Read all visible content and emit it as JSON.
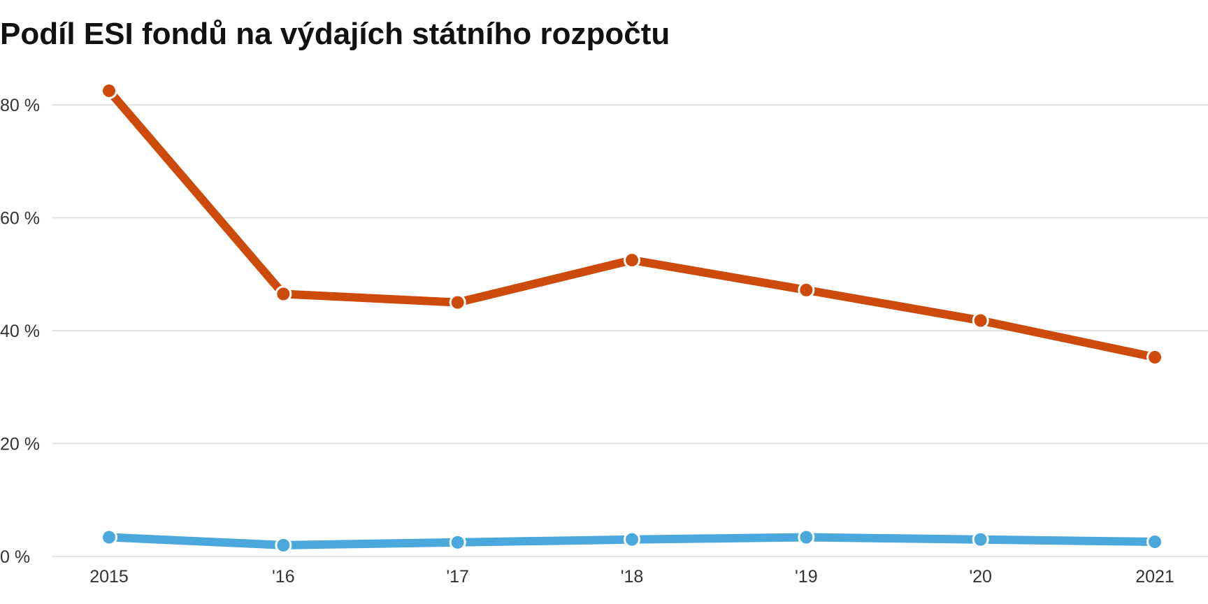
{
  "chart_data": {
    "type": "line",
    "title": "Podíl ESI fondů na výdajích státního rozpočtu",
    "xlabel": "",
    "ylabel": "",
    "categories": [
      "2015",
      "'16",
      "'17",
      "'18",
      "'19",
      "'20",
      "2021"
    ],
    "y_ticks": [
      {
        "value": 0,
        "label": "0 %"
      },
      {
        "value": 20,
        "label": "20 %"
      },
      {
        "value": 40,
        "label": "40 %"
      },
      {
        "value": 60,
        "label": "60 %"
      },
      {
        "value": 80,
        "label": "80 %"
      }
    ],
    "ylim": [
      0,
      85
    ],
    "grid": true,
    "legend": "none",
    "series": [
      {
        "color": "#cc4a0a",
        "values": [
          82.5,
          46.5,
          45,
          52.5,
          47.2,
          41.8,
          35.3
        ]
      },
      {
        "color": "#4aa8dc",
        "values": [
          3.4,
          2.0,
          2.5,
          3.0,
          3.4,
          3.0,
          2.6
        ]
      }
    ]
  }
}
